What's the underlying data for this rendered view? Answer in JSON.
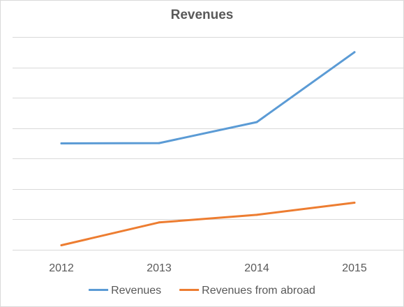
{
  "chart_data": {
    "type": "line",
    "title": "Revenues",
    "xlabel": "",
    "ylabel": "",
    "categories": [
      "2012",
      "2013",
      "2014",
      "2015"
    ],
    "series": [
      {
        "name": "Revenues",
        "color": "#5b9bd5",
        "values": [
          3.5,
          3.51,
          4.2,
          6.5
        ]
      },
      {
        "name": "Revenues from abroad",
        "color": "#ed7d31",
        "values": [
          0.15,
          0.9,
          1.15,
          1.55
        ]
      }
    ],
    "ylim": [
      0,
      7
    ],
    "y_tick_labels_shown": false,
    "grid": true,
    "legend_position": "bottom"
  }
}
